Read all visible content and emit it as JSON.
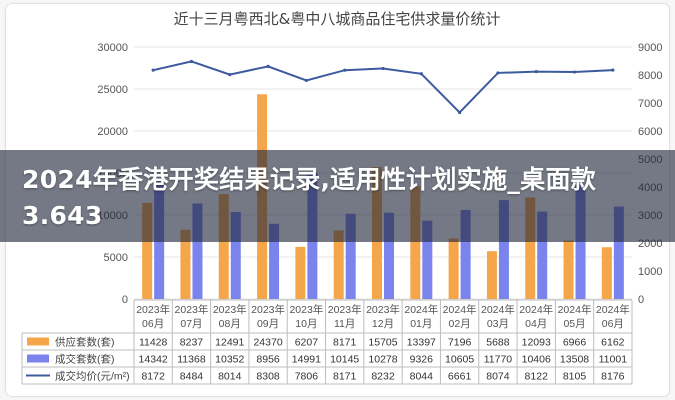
{
  "headline": "2024年香港开奖结果记录,适用性计划实施_桌面款3.643",
  "chart_data": {
    "type": "bar",
    "title": "近十三月粤西北&粤中八城商品住宅供求量价统计",
    "categories": [
      [
        "2023年",
        "06月"
      ],
      [
        "2023年",
        "07月"
      ],
      [
        "2023年",
        "08月"
      ],
      [
        "2023年",
        "09月"
      ],
      [
        "2023年",
        "10月"
      ],
      [
        "2023年",
        "11月"
      ],
      [
        "2023年",
        "12月"
      ],
      [
        "2024年",
        "01月"
      ],
      [
        "2024年",
        "02月"
      ],
      [
        "2024年",
        "03月"
      ],
      [
        "2024年",
        "04月"
      ],
      [
        "2024年",
        "05月"
      ],
      [
        "2024年",
        "06月"
      ]
    ],
    "y_left": {
      "ticks": [
        "0",
        "5000",
        "10000",
        "15000",
        "20000",
        "25000",
        "30000"
      ],
      "lim": [
        0,
        30000
      ]
    },
    "y_right": {
      "ticks": [
        "0",
        "1000",
        "2000",
        "3000",
        "4000",
        "5000",
        "6000",
        "7000",
        "8000",
        "9000"
      ],
      "lim": [
        0,
        9000
      ]
    },
    "grid": true,
    "series": [
      {
        "name": "供应套数(套)",
        "kind": "bar",
        "axis": "left",
        "color": "#f5a54a",
        "values": [
          11428,
          8237,
          12491,
          24370,
          6207,
          8171,
          15705,
          13397,
          7196,
          5688,
          12093,
          6966,
          6162
        ]
      },
      {
        "name": "成交套数(套)",
        "kind": "bar",
        "axis": "left",
        "color": "#7b83ec",
        "values": [
          14342,
          11368,
          10352,
          8956,
          14991,
          10145,
          10278,
          9326,
          10605,
          11770,
          10406,
          13508,
          11001
        ]
      },
      {
        "name": "成交均价(元/m²)",
        "kind": "line",
        "axis": "right",
        "color": "#3d5a9e",
        "values": [
          8172,
          8484,
          8014,
          8308,
          7806,
          8171,
          8232,
          8044,
          6661,
          8074,
          8122,
          8105,
          8176
        ]
      }
    ],
    "colors": {
      "supply": "#f5a54a",
      "deal": "#7b83ec",
      "price": "#3d5a9e",
      "grid": "#e4e4e4",
      "text": "#555555"
    }
  }
}
